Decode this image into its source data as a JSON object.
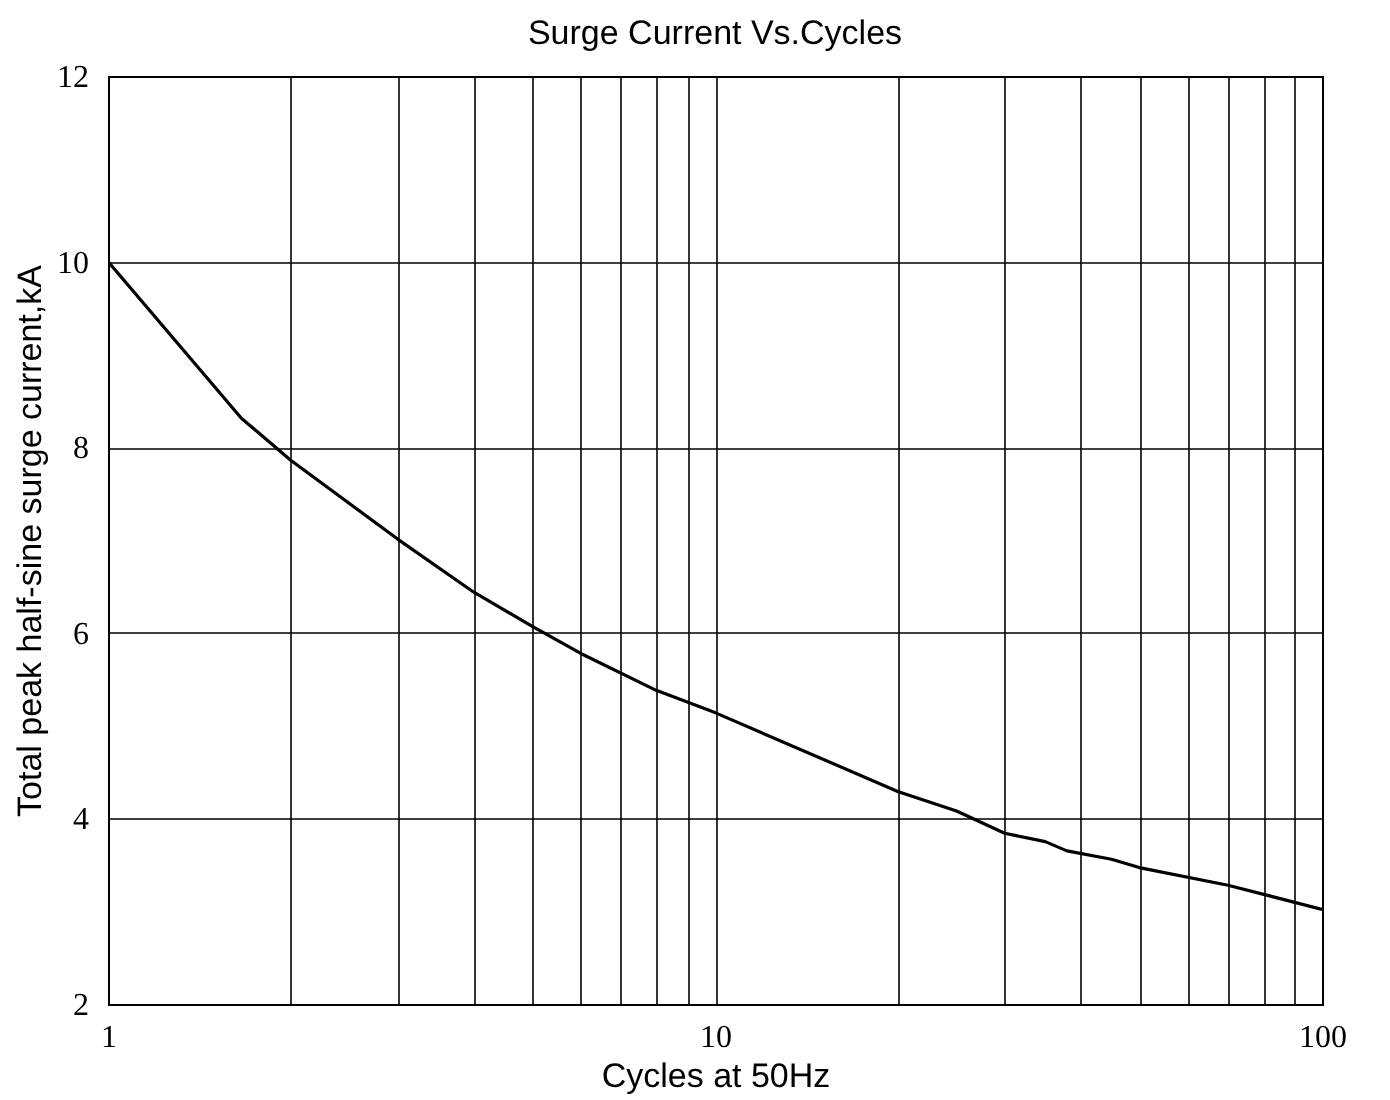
{
  "chart_data": {
    "type": "line",
    "title": "Surge Current Vs.Cycles",
    "xlabel": "Cycles at 50Hz",
    "ylabel": "Total peak half-sine surge current,kA",
    "log": "x",
    "x": [
      1,
      1.66,
      2,
      3,
      4,
      5,
      6,
      8,
      10,
      20,
      25,
      30,
      35,
      38,
      45,
      50,
      70,
      100
    ],
    "series": [
      {
        "color": "#000000",
        "values": [
          10,
          8.31,
          7.86,
          7.01,
          6.44,
          6.07,
          5.78,
          5.38,
          5.14,
          4.29,
          4.08,
          3.84,
          3.75,
          3.65,
          3.56,
          3.47,
          3.28,
          3.02
        ]
      }
    ],
    "xlim": [
      1,
      100
    ],
    "xticks": [
      1,
      {
        "value": 2,
        "label": null
      },
      {
        "value": 3,
        "label": null
      },
      {
        "value": 4,
        "label": null
      },
      {
        "value": 5,
        "label": null
      },
      {
        "value": 6,
        "label": null
      },
      {
        "value": 7,
        "label": null
      },
      {
        "value": 8,
        "label": null
      },
      {
        "value": 9,
        "label": null
      },
      10,
      {
        "value": 20,
        "label": null
      },
      {
        "value": 30,
        "label": null
      },
      {
        "value": 40,
        "label": null
      },
      {
        "value": 50,
        "label": null
      },
      {
        "value": 60,
        "label": null
      },
      {
        "value": 70,
        "label": null
      },
      {
        "value": 80,
        "label": null
      },
      {
        "value": 90,
        "label": null
      },
      100
    ],
    "ylim": [
      2,
      12
    ],
    "yticks": [
      2,
      4,
      6,
      8,
      10,
      12
    ],
    "grid": true,
    "marker": "none",
    "line_style": "solid"
  }
}
